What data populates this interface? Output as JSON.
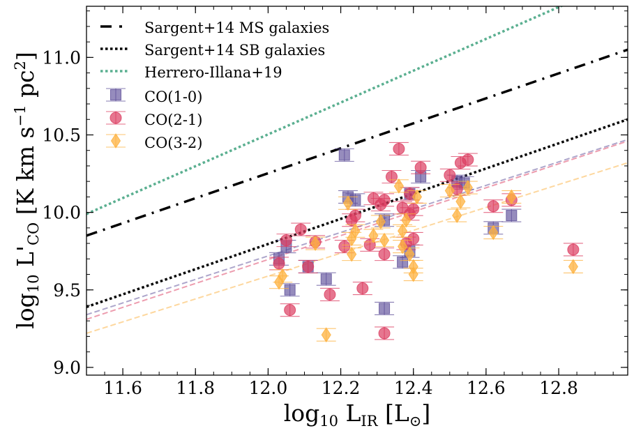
{
  "chart_data": {
    "type": "scatter",
    "xlabel": {
      "base": "log",
      "sub": "10",
      "mid": " L",
      "sub2": "IR",
      "unit": " [L",
      "sun": "⊙",
      "close": "]"
    },
    "ylabel": {
      "base": "log",
      "sub": "10",
      "mid": " L'",
      "sub2": "CO",
      "unit": " [K km s",
      "sup1": "−1",
      "pc": " pc",
      "sup2": "2",
      "close": "]"
    },
    "xlim": [
      11.5,
      12.99
    ],
    "ylim": [
      8.95,
      11.33
    ],
    "xticks": [
      11.6,
      11.8,
      12.0,
      12.2,
      12.4,
      12.6,
      12.8
    ],
    "xtick_labels": [
      "11.6",
      "11.8",
      "12.0",
      "12.2",
      "12.4",
      "12.6",
      "12.8"
    ],
    "yticks": [
      9.0,
      9.5,
      10.0,
      10.5,
      11.0
    ],
    "ytick_labels": [
      "9.0",
      "9.5",
      "10.0",
      "10.5",
      "11.0"
    ],
    "colors": {
      "co10": "#5e4f99",
      "co21": "#dc3c60",
      "co32": "#fdb13f",
      "herrero": "#5aaf90",
      "black": "#000000"
    },
    "lines": [
      {
        "name": "Sargent+14 MS galaxies",
        "style": "dashdot",
        "color": "#000000",
        "x": [
          11.5,
          12.99
        ],
        "y": [
          9.85,
          11.05
        ]
      },
      {
        "name": "Sargent+14 SB galaxies",
        "style": "dotted",
        "color": "#000000",
        "x": [
          11.5,
          12.99
        ],
        "y": [
          9.39,
          10.6
        ]
      },
      {
        "name": "Herrero-Illana+19",
        "style": "dotted",
        "color": "#5aaf90",
        "x": [
          11.5,
          12.99
        ],
        "y": [
          9.99,
          11.52
        ]
      }
    ],
    "fit_lines": [
      {
        "name": "CO(1-0) fit",
        "color": "#5e4f99",
        "x": [
          11.5,
          12.99
        ],
        "y": [
          9.34,
          10.47
        ]
      },
      {
        "name": "CO(2-1) fit",
        "color": "#dc3c60",
        "x": [
          11.5,
          12.99
        ],
        "y": [
          9.31,
          10.46
        ]
      },
      {
        "name": "CO(3-2) fit",
        "color": "#fdb13f",
        "x": [
          11.5,
          12.99
        ],
        "y": [
          9.22,
          10.32
        ]
      }
    ],
    "series": [
      {
        "name": "CO(1-0)",
        "marker": "square",
        "color": "#5e4f99",
        "points": [
          [
            12.03,
            9.7
          ],
          [
            12.05,
            9.78
          ],
          [
            12.06,
            9.5
          ],
          [
            12.11,
            9.65
          ],
          [
            12.16,
            9.57
          ],
          [
            12.21,
            10.37
          ],
          [
            12.22,
            10.1
          ],
          [
            12.24,
            10.08
          ],
          [
            12.32,
            9.95
          ],
          [
            12.32,
            9.38
          ],
          [
            12.37,
            9.68
          ],
          [
            12.39,
            10.12
          ],
          [
            12.39,
            9.75
          ],
          [
            12.42,
            10.23
          ],
          [
            12.52,
            10.2
          ],
          [
            12.54,
            10.19
          ],
          [
            12.62,
            9.9
          ],
          [
            12.67,
            9.98
          ]
        ]
      },
      {
        "name": "CO(2-1)",
        "marker": "circle",
        "color": "#dc3c60",
        "points": [
          [
            12.03,
            9.67
          ],
          [
            12.05,
            9.82
          ],
          [
            12.06,
            9.37
          ],
          [
            12.09,
            9.89
          ],
          [
            12.11,
            9.65
          ],
          [
            12.13,
            9.81
          ],
          [
            12.17,
            9.47
          ],
          [
            12.21,
            9.78
          ],
          [
            12.23,
            9.95
          ],
          [
            12.24,
            9.98
          ],
          [
            12.26,
            9.51
          ],
          [
            12.28,
            9.79
          ],
          [
            12.29,
            10.09
          ],
          [
            12.31,
            10.05
          ],
          [
            12.32,
            10.08
          ],
          [
            12.32,
            9.73
          ],
          [
            12.32,
            9.22
          ],
          [
            12.34,
            10.23
          ],
          [
            12.36,
            10.41
          ],
          [
            12.37,
            10.03
          ],
          [
            12.38,
            9.8
          ],
          [
            12.39,
            9.99
          ],
          [
            12.4,
            9.83
          ],
          [
            12.39,
            10.12
          ],
          [
            12.4,
            10.02
          ],
          [
            12.42,
            10.29
          ],
          [
            12.5,
            10.24
          ],
          [
            12.52,
            10.15
          ],
          [
            12.53,
            10.32
          ],
          [
            12.55,
            10.34
          ],
          [
            12.62,
            10.04
          ],
          [
            12.67,
            10.08
          ],
          [
            12.84,
            9.76
          ]
        ]
      },
      {
        "name": "CO(3-2)",
        "marker": "diamond",
        "color": "#fdb13f",
        "points": [
          [
            12.03,
            9.55
          ],
          [
            12.04,
            9.59
          ],
          [
            12.13,
            9.8
          ],
          [
            12.16,
            9.21
          ],
          [
            12.22,
            10.06
          ],
          [
            12.23,
            9.83
          ],
          [
            12.23,
            9.73
          ],
          [
            12.24,
            9.88
          ],
          [
            12.29,
            9.85
          ],
          [
            12.31,
            9.94
          ],
          [
            12.32,
            9.82
          ],
          [
            12.36,
            10.17
          ],
          [
            12.37,
            9.88
          ],
          [
            12.37,
            9.78
          ],
          [
            12.38,
            9.95
          ],
          [
            12.39,
            9.73
          ],
          [
            12.4,
            9.65
          ],
          [
            12.4,
            9.6
          ],
          [
            12.41,
            10.1
          ],
          [
            12.5,
            10.14
          ],
          [
            12.52,
            9.98
          ],
          [
            12.53,
            10.07
          ],
          [
            12.55,
            10.16
          ],
          [
            12.62,
            9.87
          ],
          [
            12.67,
            10.1
          ],
          [
            12.84,
            9.65
          ]
        ]
      }
    ],
    "legend": {
      "position": "top-left",
      "entries": [
        {
          "label": "Sargent+14 MS galaxies",
          "kind": "dashdot",
          "color": "#000000"
        },
        {
          "label": "Sargent+14 SB galaxies",
          "kind": "dotted",
          "color": "#000000"
        },
        {
          "label": "Herrero-Illana+19",
          "kind": "dotted",
          "color": "#5aaf90"
        },
        {
          "label": "CO(1-0)",
          "kind": "square",
          "color": "#5e4f99"
        },
        {
          "label": "CO(2-1)",
          "kind": "circle",
          "color": "#dc3c60"
        },
        {
          "label": "CO(3-2)",
          "kind": "diamond",
          "color": "#fdb13f"
        }
      ]
    }
  }
}
